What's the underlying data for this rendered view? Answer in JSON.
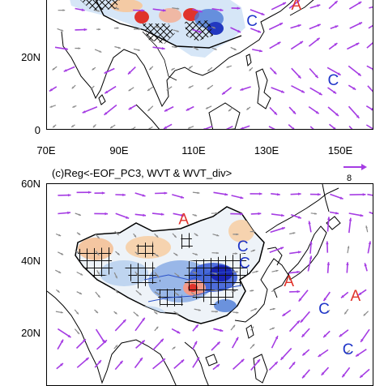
{
  "top_panel": {
    "y_ticks": [
      "20N",
      "0"
    ],
    "x_ticks": [
      "70E",
      "90E",
      "110E",
      "130E",
      "150E"
    ],
    "markers": [
      {
        "letter": "A",
        "color": "#e0332b",
        "lon": 124.5,
        "lat": 35.5
      },
      {
        "letter": "A",
        "color": "#e0332b",
        "lon": 151.5,
        "lat": 35.5
      },
      {
        "letter": "C",
        "color": "#1f35c8",
        "lon": 112.5,
        "lat": 31.0
      },
      {
        "letter": "C",
        "color": "#1f35c8",
        "lon": 134.5,
        "lat": 14.5
      },
      {
        "letter": "C",
        "color": "#1f35c8",
        "lon": 149.0,
        "lat": 15.0
      }
    ]
  },
  "bottom_panel": {
    "title": "(c)Reg<-EOF_PC3, WVT & WVT_div>",
    "reference_vector": "8",
    "y_ticks": [
      "60N",
      "40N",
      "20N"
    ],
    "markers": [
      {
        "letter": "A",
        "color": "#e0332b",
        "lon": 94.0,
        "lat": 52.0
      },
      {
        "letter": "A",
        "color": "#e0332b",
        "lon": 151.0,
        "lat": 52.5
      },
      {
        "letter": "C",
        "color": "#1f35c8",
        "lon": 149.5,
        "lat": 53.0
      },
      {
        "letter": "C",
        "color": "#1f35c8",
        "lon": 110.0,
        "lat": 44.5
      },
      {
        "letter": "C",
        "color": "#1f35c8",
        "lon": 110.5,
        "lat": 40.0
      },
      {
        "letter": "A",
        "color": "#e0332b",
        "lon": 122.5,
        "lat": 35.0
      },
      {
        "letter": "A",
        "color": "#e0332b",
        "lon": 140.5,
        "lat": 31.0
      },
      {
        "letter": "C",
        "color": "#1f35c8",
        "lon": 132.0,
        "lat": 27.5
      },
      {
        "letter": "C",
        "color": "#1f35c8",
        "lon": 138.5,
        "lat": 16.5
      }
    ]
  },
  "colors": {
    "vector_strong": "#a53ce3",
    "vector_weak": "#8a8a8a",
    "positive": "#e0332b",
    "negative": "#1f35c8"
  }
}
